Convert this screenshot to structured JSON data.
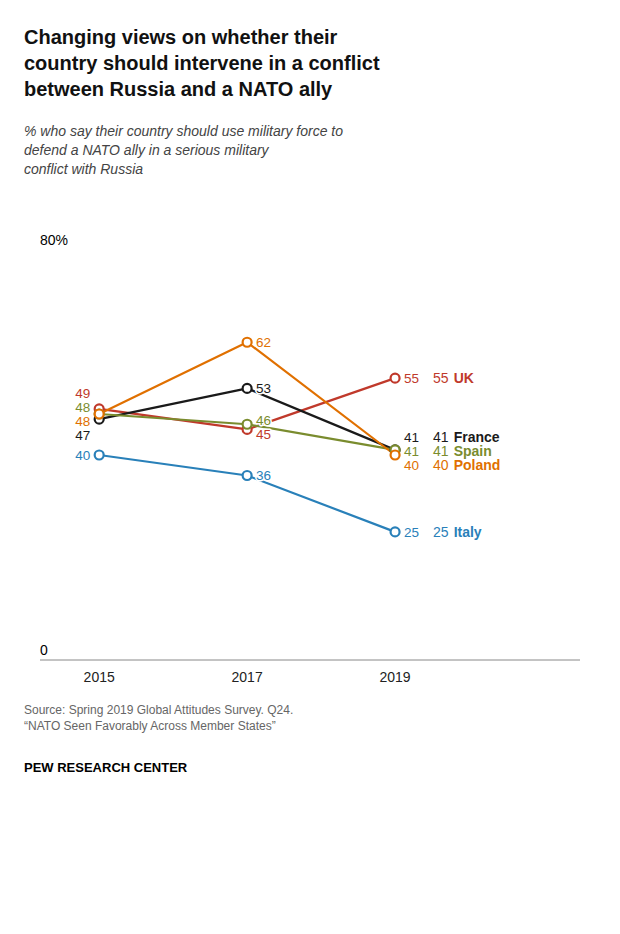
{
  "chart_data": {
    "type": "line",
    "title": "Changing views on whether their\ncountry should intervene in a conflict\nbetween Russia and a NATO ally",
    "subtitle": "% who say their country should use military force to\ndefend a NATO ally in a serious military\nconflict with Russia",
    "x": [
      2015,
      2017,
      2019
    ],
    "xlim": [
      2014.2,
      2021.5
    ],
    "xticks": [
      2015,
      2017,
      2019
    ],
    "ylim": [
      0,
      80
    ],
    "yticks": [
      0,
      {
        "value": 80,
        "label": "80%"
      }
    ],
    "grid": false,
    "data_labels": true,
    "marker": "circle",
    "series": [
      {
        "name": "UK",
        "color": "#c0392b",
        "values": [
          49,
          45,
          55
        ]
      },
      {
        "name": "France",
        "color": "#1a1a1a",
        "values": [
          47,
          53,
          41
        ]
      },
      {
        "name": "Spain",
        "color": "#7a8c2e",
        "values": [
          48,
          46,
          41
        ]
      },
      {
        "name": "Poland",
        "color": "#e07000",
        "values": [
          48,
          62,
          40
        ]
      },
      {
        "name": "Italy",
        "color": "#2980b9",
        "values": [
          40,
          36,
          25
        ]
      }
    ],
    "source": "Source: Spring 2019 Global Attitudes Survey. Q24.\n“NATO Seen Favorably Across Member States”",
    "footer": "PEW RESEARCH CENTER"
  }
}
